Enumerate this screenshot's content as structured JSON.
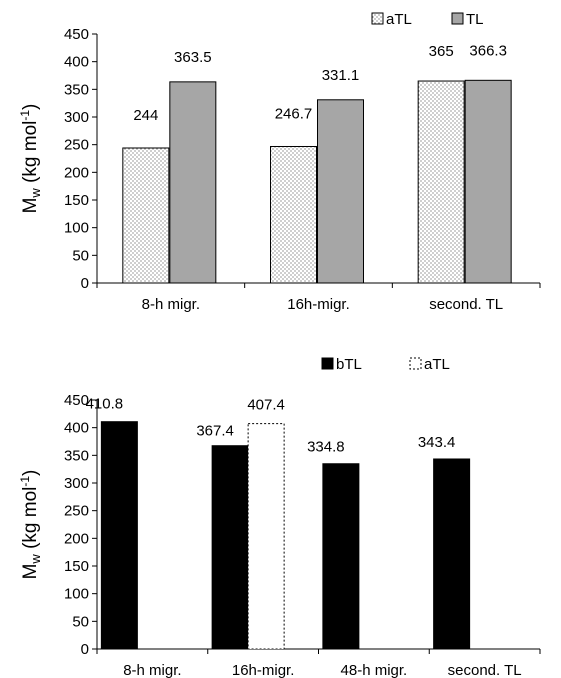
{
  "chart_data": [
    {
      "type": "bar",
      "categories": [
        "8-h migr.",
        "16h-migr.",
        "second. TL"
      ],
      "series": [
        {
          "name": "aTL",
          "values": [
            244,
            246.7,
            365
          ],
          "labels": [
            "244",
            "246.7",
            "365"
          ],
          "pattern": "dotted"
        },
        {
          "name": "TL",
          "values": [
            363.5,
            331.1,
            366.3
          ],
          "labels": [
            "363.5",
            "331.1",
            "366.3"
          ],
          "color": "#a6a6a6"
        }
      ],
      "ylim": [
        0,
        450
      ],
      "yticks": [
        0,
        50,
        100,
        150,
        200,
        250,
        300,
        350,
        400,
        450
      ],
      "ylabel": "Mw (kg mol-1)",
      "legend": "top",
      "grid": false
    },
    {
      "type": "bar",
      "categories": [
        "8-h migr.",
        "16h-migr.",
        "48-h migr.",
        "second. TL"
      ],
      "series": [
        {
          "name": "bTL",
          "values": [
            410.8,
            367.4,
            334.8,
            343.4
          ],
          "labels": [
            "410.8",
            "367.4",
            "334.8",
            "343.4"
          ],
          "color": "#000000"
        },
        {
          "name": "aTL",
          "values": [
            null,
            407.4,
            null,
            null
          ],
          "labels": [
            null,
            "407.4",
            null,
            null
          ],
          "pattern": "dashed-outline"
        }
      ],
      "ylim": [
        0,
        450
      ],
      "yticks": [
        0,
        50,
        100,
        150,
        200,
        250,
        300,
        350,
        400,
        450
      ],
      "ylabel": "Mw (kg mol-1)",
      "legend": "top",
      "grid": false
    }
  ]
}
